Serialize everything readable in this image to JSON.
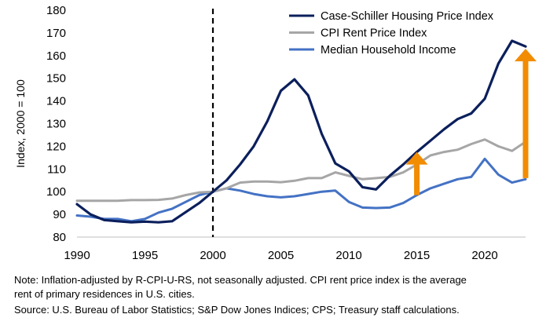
{
  "chart_data": {
    "type": "line",
    "title": "",
    "xlabel": "",
    "ylabel": "Index, 2000 = 100",
    "xlim": [
      1990,
      2023
    ],
    "ylim": [
      80,
      180
    ],
    "x_ticks": [
      1990,
      1995,
      2000,
      2005,
      2010,
      2015,
      2020
    ],
    "y_ticks": [
      80,
      90,
      100,
      110,
      120,
      130,
      140,
      150,
      160,
      170,
      180
    ],
    "grid": false,
    "legend_position": "top-right",
    "reference_line": {
      "x": 2000,
      "style": "dashed"
    },
    "x": [
      1990,
      1991,
      1992,
      1993,
      1994,
      1995,
      1996,
      1997,
      1998,
      1999,
      2000,
      2001,
      2002,
      2003,
      2004,
      2005,
      2006,
      2007,
      2008,
      2009,
      2010,
      2011,
      2012,
      2013,
      2014,
      2015,
      2016,
      2017,
      2018,
      2019,
      2020,
      2021,
      2022,
      2023
    ],
    "series": [
      {
        "name": "Case-Schiller Housing Price Index",
        "color": "#0b1f5c",
        "values": [
          94.5,
          90,
          87.5,
          87,
          86.5,
          86.8,
          86.5,
          87,
          91,
          95,
          100,
          105,
          112,
          120,
          131,
          144.5,
          149.5,
          142.5,
          125.5,
          112.5,
          109,
          102,
          101,
          107,
          112,
          117.5,
          122.5,
          127.5,
          132,
          134.5,
          141,
          156.5,
          166.5,
          164
        ]
      },
      {
        "name": "CPI Rent Price Index",
        "color": "#a6a6a6",
        "values": [
          96,
          96,
          96,
          96,
          96.3,
          96.3,
          96.4,
          97,
          98.5,
          99.7,
          100,
          101.5,
          104,
          104.5,
          104.5,
          104.2,
          104.8,
          106,
          106,
          108.5,
          107,
          105.5,
          106,
          106.5,
          108.5,
          112,
          116,
          117.5,
          118.5,
          121,
          123,
          120,
          118,
          122
        ]
      },
      {
        "name": "Median Household Income",
        "color": "#4472c4",
        "values": [
          89.5,
          89,
          88,
          88,
          87,
          88,
          90.8,
          92.5,
          95.5,
          98.5,
          100,
          101.5,
          100.5,
          99,
          98,
          97.5,
          98,
          99,
          100,
          100.5,
          95.5,
          93,
          92.8,
          93,
          95,
          98.5,
          101.5,
          103.5,
          105.5,
          106.5,
          114.5,
          107.5,
          104,
          105.5
        ]
      }
    ],
    "annotations": [
      {
        "type": "arrow",
        "direction": "up",
        "x": 2015,
        "y_from": 98.5,
        "y_to": 117.5,
        "color": "#f28c00"
      },
      {
        "type": "arrow",
        "direction": "up",
        "x": 2023,
        "y_from": 106,
        "y_to": 163,
        "color": "#f28c00"
      }
    ]
  },
  "notes": {
    "line1": "Note: Inflation-adjusted by R-CPI-U-RS, not seasonally adjusted. CPI rent price index is the average",
    "line2": "rent of primary residences in U.S. cities.",
    "line3": "Source: U.S. Bureau of Labor Statistics; S&P Dow Jones Indices; CPS; Treasury staff calculations."
  }
}
